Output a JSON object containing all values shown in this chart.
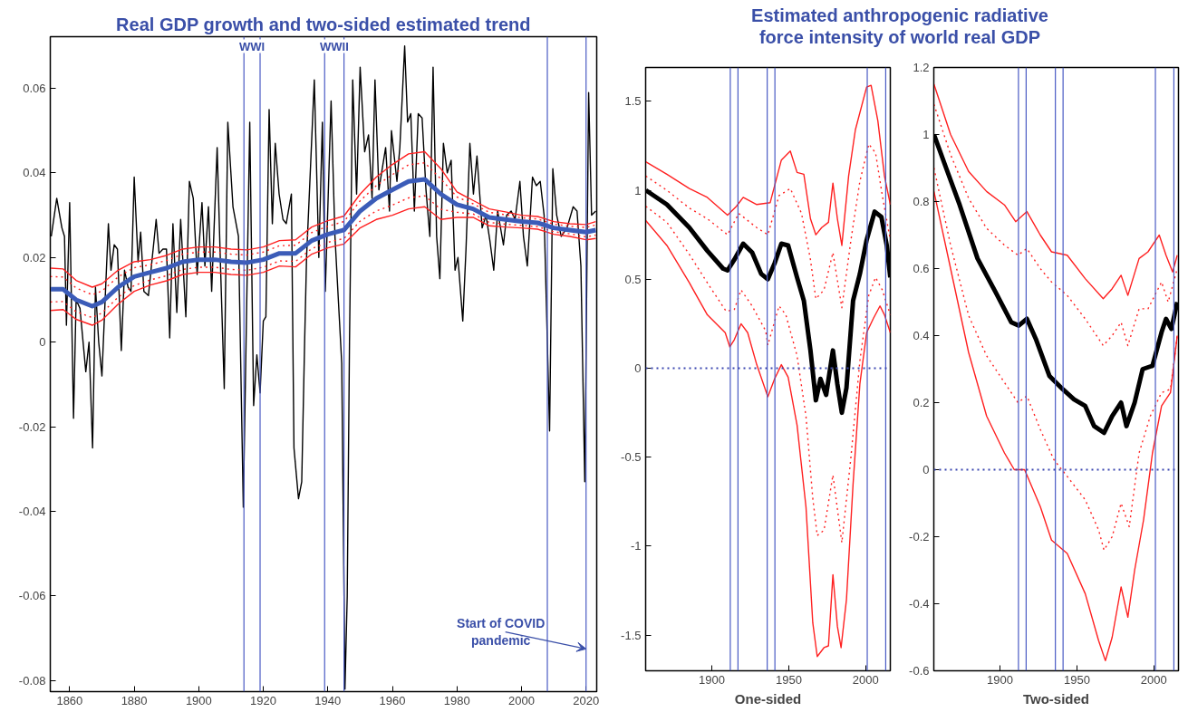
{
  "chart_data": [
    {
      "type": "line",
      "title": "Real GDP growth and two-sided estimated trend",
      "xlim": [
        1854,
        2023.3
      ],
      "ylim": [
        -0.0826,
        0.0722
      ],
      "xticks": [
        1860,
        1880,
        1900,
        1920,
        1940,
        1960,
        1980,
        2000,
        2020
      ],
      "yticks": [
        -0.08,
        -0.06,
        -0.04,
        -0.02,
        0,
        0.02,
        0.04,
        0.06
      ],
      "grid": false,
      "series": [
        {
          "color": "#000000",
          "line_style": "solid",
          "x": [
            1854.3,
            1856.0,
            1857.6,
            1858.4,
            1859.0,
            1860.0,
            1861.2,
            1862.0,
            1863.2,
            1865.0,
            1866.0,
            1867.1,
            1868.0,
            1869.0,
            1870.0,
            1871.1,
            1872.0,
            1872.8,
            1873.8,
            1874.8,
            1876.0,
            1877.0,
            1878.1,
            1879.0,
            1880.0,
            1881.2,
            1882.0,
            1883.0,
            1884.4,
            1886.8,
            1887.7,
            1888.9,
            1890.0,
            1891.0,
            1892.0,
            1893.2,
            1894.4,
            1896.0,
            1897.1,
            1898.3,
            1899.5,
            1901.0,
            1901.9,
            1903.0,
            1904.0,
            1905.7,
            1906.7,
            1907.9,
            1909.0,
            1910.6,
            1912.3,
            1913.8,
            1915.8,
            1917.0,
            1918.0,
            1919.0,
            1920.0,
            1920.8,
            1921.8,
            1922.8,
            1923.7,
            1924.9,
            1926.1,
            1927.1,
            1928.7,
            1929.5,
            1930.9,
            1931.9,
            1932.8,
            1933.4,
            1935.8,
            1937.2,
            1938.3,
            1939.2,
            1941.0,
            1942.2,
            1944.3,
            1945.3,
            1946.0,
            1946.7,
            1947.7,
            1948.9,
            1950.0,
            1951.4,
            1952.6,
            1953.7,
            1954.6,
            1955.8,
            1957.9,
            1959.1,
            1959.7,
            1961.4,
            1962.3,
            1963.8,
            1964.7,
            1965.7,
            1966.8,
            1968.0,
            1969.2,
            1970.4,
            1971.6,
            1972.6,
            1973.7,
            1974.7,
            1975.8,
            1977.0,
            1978.2,
            1979.4,
            1980.3,
            1981.8,
            1982.8,
            1984.0,
            1985.1,
            1986.2,
            1987.8,
            1989.0,
            1990.2,
            1991.4,
            1992.6,
            1994.4,
            1995.4,
            1996.8,
            1998.0,
            1999.5,
            2000.6,
            2001.8,
            2003.4,
            2004.6,
            2005.8,
            2007.0,
            2008.7,
            2009.7,
            2010.9,
            2012.3,
            2014.1,
            2016.0,
            2017.2,
            2018.4,
            2019.6,
            2020.8,
            2021.7,
            2023.0
          ],
          "values": [
            0.025,
            0.034,
            0.027,
            0.025,
            0.004,
            0.033,
            -0.018,
            0.01,
            0.008,
            -0.007,
            0.0,
            -0.025,
            0.013,
            0.0,
            -0.008,
            0.012,
            0.028,
            0.017,
            0.023,
            0.022,
            -0.002,
            0.017,
            0.013,
            0.012,
            0.039,
            0.019,
            0.026,
            0.012,
            0.011,
            0.029,
            0.021,
            0.022,
            0.022,
            0.001,
            0.028,
            0.007,
            0.029,
            0.006,
            0.038,
            0.034,
            0.016,
            0.033,
            0.018,
            0.032,
            0.012,
            0.046,
            0.019,
            -0.011,
            0.052,
            0.032,
            0.025,
            -0.039,
            0.052,
            -0.015,
            -0.003,
            -0.012,
            0.005,
            0.006,
            0.055,
            0.028,
            0.047,
            0.035,
            0.029,
            0.028,
            0.035,
            -0.025,
            -0.037,
            -0.033,
            0.0,
            0.02,
            0.062,
            0.02,
            0.052,
            0.012,
            0.057,
            0.025,
            -0.005,
            -0.082,
            -0.06,
            0.0,
            0.062,
            0.035,
            0.065,
            0.045,
            0.049,
            0.034,
            0.062,
            0.036,
            0.046,
            0.031,
            0.05,
            0.038,
            0.046,
            0.07,
            0.052,
            0.054,
            0.031,
            0.054,
            0.053,
            0.036,
            0.025,
            0.065,
            0.025,
            0.015,
            0.047,
            0.04,
            0.043,
            0.017,
            0.02,
            0.005,
            0.022,
            0.047,
            0.035,
            0.044,
            0.027,
            0.03,
            0.024,
            0.017,
            0.031,
            0.023,
            0.03,
            0.031,
            0.029,
            0.038,
            0.025,
            0.018,
            0.039,
            0.037,
            0.038,
            0.03,
            -0.021,
            0.041,
            0.03,
            0.025,
            0.027,
            0.032,
            0.031,
            0.018,
            -0.033,
            0.059,
            0.03,
            0.031
          ]
        },
        {
          "color": "#ff2020",
          "line_style": "solid",
          "x": [
            1854,
            1858,
            1862,
            1867,
            1870,
            1875,
            1880,
            1885,
            1890,
            1895,
            1900,
            1905,
            1910,
            1915,
            1920,
            1925,
            1930,
            1935,
            1940,
            1945,
            1950,
            1955,
            1960,
            1965,
            1970,
            1975,
            1980,
            1985,
            1990,
            1995,
            2000,
            2005,
            2010,
            2015,
            2020,
            2023
          ],
          "values": [
            0.0175,
            0.0173,
            0.0146,
            0.013,
            0.0138,
            0.017,
            0.019,
            0.0195,
            0.0205,
            0.022,
            0.0225,
            0.0225,
            0.022,
            0.0218,
            0.0225,
            0.024,
            0.0242,
            0.0272,
            0.0287,
            0.0298,
            0.035,
            0.039,
            0.042,
            0.0445,
            0.045,
            0.041,
            0.0355,
            0.0335,
            0.0315,
            0.0308,
            0.03,
            0.0297,
            0.0285,
            0.028,
            0.0278,
            0.0285
          ]
        },
        {
          "color": "#ff2020",
          "line_style": "solid",
          "x": [
            1854,
            1858,
            1862,
            1867,
            1870,
            1875,
            1880,
            1885,
            1890,
            1895,
            1900,
            1905,
            1910,
            1915,
            1920,
            1925,
            1930,
            1935,
            1940,
            1945,
            1950,
            1955,
            1960,
            1965,
            1970,
            1975,
            1980,
            1985,
            1990,
            1995,
            2000,
            2005,
            2010,
            2015,
            2020,
            2023
          ],
          "values": [
            0.0075,
            0.0077,
            0.0054,
            0.004,
            0.0052,
            0.009,
            0.012,
            0.0135,
            0.0145,
            0.016,
            0.0165,
            0.0165,
            0.016,
            0.0158,
            0.0165,
            0.018,
            0.0178,
            0.0208,
            0.0223,
            0.0232,
            0.027,
            0.029,
            0.03,
            0.0315,
            0.032,
            0.029,
            0.0295,
            0.0295,
            0.0275,
            0.0272,
            0.027,
            0.0267,
            0.0255,
            0.025,
            0.0242,
            0.0245
          ]
        },
        {
          "color": "#ff2020",
          "line_style": "dotted",
          "x": [
            1854,
            1858,
            1862,
            1867,
            1870,
            1875,
            1880,
            1885,
            1890,
            1895,
            1900,
            1905,
            1910,
            1915,
            1920,
            1925,
            1930,
            1935,
            1940,
            1945,
            1950,
            1955,
            1960,
            1965,
            1970,
            1975,
            1980,
            1985,
            1990,
            1995,
            2000,
            2005,
            2010,
            2015,
            2020,
            2023
          ],
          "values": [
            0.0155,
            0.0154,
            0.0128,
            0.0112,
            0.0121,
            0.0154,
            0.0176,
            0.0183,
            0.0193,
            0.0208,
            0.0213,
            0.0213,
            0.0208,
            0.0206,
            0.0213,
            0.0228,
            0.0229,
            0.0259,
            0.0274,
            0.0285,
            0.0334,
            0.037,
            0.0396,
            0.0419,
            0.0424,
            0.0386,
            0.0343,
            0.0327,
            0.0307,
            0.0301,
            0.0294,
            0.0291,
            0.0279,
            0.0274,
            0.0271,
            0.0277
          ]
        },
        {
          "color": "#ff2020",
          "line_style": "dotted",
          "x": [
            1854,
            1858,
            1862,
            1867,
            1870,
            1875,
            1880,
            1885,
            1890,
            1895,
            1900,
            1905,
            1910,
            1915,
            1920,
            1925,
            1930,
            1935,
            1940,
            1945,
            1950,
            1955,
            1960,
            1965,
            1970,
            1975,
            1980,
            1985,
            1990,
            1995,
            2000,
            2005,
            2010,
            2015,
            2020,
            2023
          ],
          "values": [
            0.0095,
            0.0096,
            0.0072,
            0.0058,
            0.0069,
            0.0106,
            0.0134,
            0.0147,
            0.0157,
            0.0172,
            0.0177,
            0.0177,
            0.0172,
            0.017,
            0.0177,
            0.0192,
            0.0191,
            0.0221,
            0.0236,
            0.0245,
            0.0286,
            0.031,
            0.0324,
            0.0341,
            0.0346,
            0.0314,
            0.0307,
            0.0303,
            0.0283,
            0.0279,
            0.0276,
            0.0273,
            0.0261,
            0.0256,
            0.0249,
            0.0253
          ]
        },
        {
          "color": "#3b5cb8",
          "line_style": "solid",
          "x": [
            1854,
            1858,
            1862,
            1867,
            1870,
            1875,
            1880,
            1885,
            1890,
            1895,
            1900,
            1905,
            1910,
            1915,
            1920,
            1925,
            1930,
            1935,
            1940,
            1945,
            1950,
            1955,
            1960,
            1965,
            1970,
            1975,
            1980,
            1985,
            1990,
            1995,
            2000,
            2005,
            2010,
            2015,
            2020,
            2023
          ],
          "values": [
            0.0125,
            0.0125,
            0.01,
            0.0085,
            0.0095,
            0.013,
            0.0155,
            0.0165,
            0.0175,
            0.019,
            0.0195,
            0.0195,
            0.019,
            0.0188,
            0.0195,
            0.021,
            0.021,
            0.024,
            0.0255,
            0.0265,
            0.031,
            0.034,
            0.036,
            0.038,
            0.0385,
            0.035,
            0.0325,
            0.0315,
            0.0295,
            0.029,
            0.0285,
            0.0282,
            0.027,
            0.0265,
            0.026,
            0.0265
          ]
        }
      ],
      "ref_lines": [
        {
          "axis": "x",
          "value": 1914,
          "color": "#4a5bc4"
        },
        {
          "axis": "x",
          "value": 1919,
          "color": "#4a5bc4"
        },
        {
          "axis": "x",
          "value": 1939,
          "color": "#4a5bc4"
        },
        {
          "axis": "x",
          "value": 1945,
          "color": "#4a5bc4"
        },
        {
          "axis": "x",
          "value": 2008,
          "color": "#4a5bc4"
        },
        {
          "axis": "x",
          "value": 2020,
          "color": "#4a5bc4"
        }
      ],
      "annotations": [
        {
          "text": "WWI",
          "x": 1916.5
        },
        {
          "text": "WWII",
          "x": 1942
        },
        {
          "text": "Start of COVID\npandemic",
          "x": 2020,
          "y": -0.0725
        }
      ]
    },
    {
      "type": "line",
      "title": "Estimated anthropogenic radiative\nforce intensity of world real GDP",
      "xlabel": "One-sided",
      "xlim": [
        1857,
        2016
      ],
      "ylim": [
        -1.7,
        1.69
      ],
      "xticks": [
        1900,
        1950,
        2000
      ],
      "yticks": [
        -1.5,
        -1,
        -0.5,
        0,
        0.5,
        1,
        1.5
      ],
      "grid": false,
      "series": [
        {
          "color": "#ff2020",
          "line_style": "solid",
          "x": [
            1857.1,
            1870.8,
            1885.4,
            1897.1,
            1910.2,
            1916.0,
            1920.4,
            1929.2,
            1937.9,
            1945.2,
            1951.0,
            1955.4,
            1959.8,
            1964.1,
            1967.6,
            1971.4,
            1975.8,
            1978.7,
            1981.6,
            1984.5,
            1988.9,
            1993.3,
            2000.6,
            2003.5,
            2007.9,
            2012.2,
            2016.0
          ],
          "values": [
            1.16,
            1.09,
            1.01,
            0.96,
            0.86,
            0.91,
            0.96,
            0.92,
            0.93,
            1.17,
            1.22,
            1.1,
            1.09,
            0.84,
            0.75,
            0.79,
            0.82,
            1.04,
            0.84,
            0.69,
            1.08,
            1.34,
            1.58,
            1.59,
            1.39,
            1.08,
            0.92
          ]
        },
        {
          "color": "#ff2020",
          "line_style": "dotted",
          "x": [
            1857.1,
            1870.8,
            1885.4,
            1897.1,
            1910.2,
            1917.5,
            1929.2,
            1936.4,
            1943.7,
            1951.0,
            1958.3,
            1964.1,
            1967.6,
            1972.9,
            1978.7,
            1984.5,
            1990.4,
            1996.2,
            2002.0,
            2006.4,
            2010.8,
            2016.0
          ],
          "values": [
            1.08,
            1.0,
            0.9,
            0.84,
            0.75,
            0.87,
            0.79,
            0.75,
            0.97,
            1.01,
            0.87,
            0.61,
            0.39,
            0.44,
            0.65,
            0.34,
            0.72,
            1.05,
            1.26,
            1.21,
            0.97,
            0.72
          ]
        },
        {
          "color": "#ff2020",
          "line_style": "dotted",
          "x": [
            1857.1,
            1870.8,
            1885.4,
            1897.1,
            1909.3,
            1914.6,
            1919.0,
            1926.2,
            1935.0,
            1936.4,
            1943.7,
            1948.1,
            1955.4,
            1961.2,
            1965.6,
            1968.5,
            1972.9,
            1978.7,
            1984.5,
            1990.4,
            1996.2,
            2002.0,
            2006.4,
            2010.8,
            2016.0
          ],
          "values": [
            0.91,
            0.82,
            0.64,
            0.48,
            0.32,
            0.33,
            0.44,
            0.35,
            0.21,
            0.13,
            0.35,
            0.3,
            0.07,
            -0.27,
            -0.73,
            -0.94,
            -0.91,
            -0.6,
            -0.98,
            -0.5,
            0.04,
            0.41,
            0.51,
            0.44,
            0.3
          ]
        },
        {
          "color": "#ff2020",
          "line_style": "solid",
          "x": [
            1857.1,
            1870.8,
            1885.4,
            1897.1,
            1908.7,
            1911.7,
            1914.6,
            1919.0,
            1923.3,
            1929.2,
            1936.4,
            1940.8,
            1945.2,
            1949.6,
            1955.4,
            1961.2,
            1965.6,
            1968.5,
            1972.9,
            1975.8,
            1978.7,
            1981.6,
            1984.0,
            1987.5,
            1991.8,
            1996.2,
            2000.6,
            2005.0,
            2009.3,
            2012.2,
            2016.0
          ],
          "values": [
            0.83,
            0.69,
            0.48,
            0.3,
            0.2,
            0.12,
            0.16,
            0.25,
            0.2,
            0.02,
            -0.16,
            -0.06,
            0.02,
            -0.05,
            -0.32,
            -0.78,
            -1.43,
            -1.62,
            -1.57,
            -1.56,
            -1.16,
            -1.45,
            -1.57,
            -1.3,
            -0.65,
            -0.09,
            0.2,
            0.28,
            0.35,
            0.3,
            0.2
          ]
        },
        {
          "color": "#000000",
          "line_style": "solid",
          "x": [
            1857.1,
            1870.8,
            1885.4,
            1897.1,
            1907.3,
            1910.2,
            1914.6,
            1920.4,
            1926.2,
            1932.1,
            1936.4,
            1940.8,
            1945.2,
            1949.6,
            1955.4,
            1959.8,
            1964.1,
            1967.6,
            1970.6,
            1974.3,
            1978.7,
            1981.6,
            1984.5,
            1987.5,
            1991.8,
            1996.2,
            2000.6,
            2005.8,
            2010.2,
            2013.7,
            2016.0
          ],
          "values": [
            1.0,
            0.92,
            0.79,
            0.66,
            0.56,
            0.55,
            0.61,
            0.7,
            0.65,
            0.53,
            0.5,
            0.59,
            0.7,
            0.69,
            0.51,
            0.38,
            0.1,
            -0.18,
            -0.06,
            -0.15,
            0.1,
            -0.09,
            -0.25,
            -0.11,
            0.38,
            0.53,
            0.72,
            0.88,
            0.85,
            0.69,
            0.51
          ]
        }
      ],
      "ref_lines": [
        {
          "axis": "x",
          "value": 1912,
          "color": "#4a5bc4"
        },
        {
          "axis": "x",
          "value": 1917,
          "color": "#4a5bc4"
        },
        {
          "axis": "x",
          "value": 1936,
          "color": "#4a5bc4"
        },
        {
          "axis": "x",
          "value": 1941,
          "color": "#4a5bc4"
        },
        {
          "axis": "x",
          "value": 2001,
          "color": "#4a5bc4"
        },
        {
          "axis": "x",
          "value": 2013,
          "color": "#4a5bc4"
        },
        {
          "axis": "y",
          "value": 0,
          "color": "#3a46b0",
          "line_style": "dotted"
        }
      ]
    },
    {
      "type": "line",
      "xlabel": "Two-sided",
      "xlim": [
        1857,
        2016
      ],
      "ylim": [
        -0.6,
        1.2
      ],
      "xticks": [
        1900,
        1950,
        2000
      ],
      "yticks": [
        -0.6,
        -0.4,
        -0.2,
        0,
        0.2,
        0.4,
        0.6,
        0.8,
        1,
        1.2
      ],
      "grid": false,
      "series": [
        {
          "color": "#ff2020",
          "line_style": "solid",
          "x": [
            1857.1,
            1867.9,
            1879.6,
            1891.3,
            1902.9,
            1910.2,
            1917.5,
            1926.2,
            1933.5,
            1943.7,
            1955.4,
            1967.1,
            1972.9,
            1978.7,
            1983.1,
            1990.4,
            1996.2,
            2003.5,
            2007.9,
            2012.2,
            2015.2
          ],
          "values": [
            1.15,
            1.0,
            0.89,
            0.83,
            0.79,
            0.74,
            0.77,
            0.7,
            0.65,
            0.64,
            0.57,
            0.51,
            0.54,
            0.58,
            0.52,
            0.63,
            0.65,
            0.7,
            0.64,
            0.59,
            0.64
          ]
        },
        {
          "color": "#ff2020",
          "line_style": "dotted",
          "x": [
            1857.1,
            1867.9,
            1879.6,
            1891.3,
            1902.9,
            1911.7,
            1917.5,
            1926.2,
            1933.5,
            1943.7,
            1955.4,
            1967.1,
            1972.9,
            1978.7,
            1983.1,
            1990.4,
            1996.2,
            2005.0,
            2009.3,
            2015.2
          ],
          "values": [
            1.09,
            0.94,
            0.81,
            0.72,
            0.67,
            0.64,
            0.66,
            0.6,
            0.56,
            0.52,
            0.45,
            0.37,
            0.4,
            0.44,
            0.37,
            0.48,
            0.48,
            0.56,
            0.5,
            0.6
          ]
        },
        {
          "color": "#ff2020",
          "line_style": "dotted",
          "x": [
            1857.1,
            1867.9,
            1879.6,
            1891.3,
            1902.9,
            1911.7,
            1917.5,
            1926.2,
            1935.0,
            1943.7,
            1955.4,
            1964.1,
            1967.6,
            1972.9,
            1978.7,
            1984.0,
            1990.4,
            1997.7,
            2005.0,
            2010.8,
            2015.2
          ],
          "values": [
            0.9,
            0.67,
            0.46,
            0.34,
            0.26,
            0.2,
            0.22,
            0.12,
            0.03,
            -0.02,
            -0.09,
            -0.18,
            -0.24,
            -0.2,
            -0.1,
            -0.17,
            0.05,
            0.16,
            0.23,
            0.24,
            0.4
          ]
        },
        {
          "color": "#ff2020",
          "line_style": "solid",
          "x": [
            1857.1,
            1867.9,
            1879.6,
            1891.3,
            1902.9,
            1909.3,
            1916.0,
            1926.2,
            1933.5,
            1943.7,
            1955.4,
            1964.1,
            1968.5,
            1972.9,
            1978.7,
            1983.1,
            1987.5,
            1993.3,
            1999.1,
            2005.0,
            2010.8,
            2015.2
          ],
          "values": [
            0.83,
            0.6,
            0.35,
            0.16,
            0.05,
            0.0,
            0.0,
            -0.11,
            -0.21,
            -0.25,
            -0.37,
            -0.51,
            -0.57,
            -0.5,
            -0.35,
            -0.44,
            -0.3,
            -0.15,
            0.05,
            0.19,
            0.23,
            0.4
          ]
        },
        {
          "color": "#000000",
          "line_style": "solid",
          "x": [
            1857.1,
            1865.0,
            1873.8,
            1885.4,
            1897.1,
            1907.3,
            1912.2,
            1917.5,
            1923.3,
            1932.1,
            1940.8,
            1948.1,
            1955.4,
            1961.2,
            1967.6,
            1972.9,
            1978.7,
            1982.2,
            1987.5,
            1992.7,
            1999.1,
            2005.0,
            2007.9,
            2011.4,
            2015.2
          ],
          "values": [
            1.0,
            0.9,
            0.79,
            0.63,
            0.53,
            0.44,
            0.43,
            0.45,
            0.39,
            0.28,
            0.24,
            0.21,
            0.19,
            0.13,
            0.11,
            0.16,
            0.2,
            0.13,
            0.2,
            0.3,
            0.31,
            0.41,
            0.45,
            0.42,
            0.5
          ]
        }
      ],
      "ref_lines": [
        {
          "axis": "x",
          "value": 1912,
          "color": "#4a5bc4"
        },
        {
          "axis": "x",
          "value": 1917,
          "color": "#4a5bc4"
        },
        {
          "axis": "x",
          "value": 1936,
          "color": "#4a5bc4"
        },
        {
          "axis": "x",
          "value": 1941,
          "color": "#4a5bc4"
        },
        {
          "axis": "x",
          "value": 2001,
          "color": "#4a5bc4"
        },
        {
          "axis": "x",
          "value": 2013,
          "color": "#4a5bc4"
        },
        {
          "axis": "y",
          "value": 0,
          "color": "#3a46b0",
          "line_style": "dotted"
        }
      ]
    }
  ]
}
